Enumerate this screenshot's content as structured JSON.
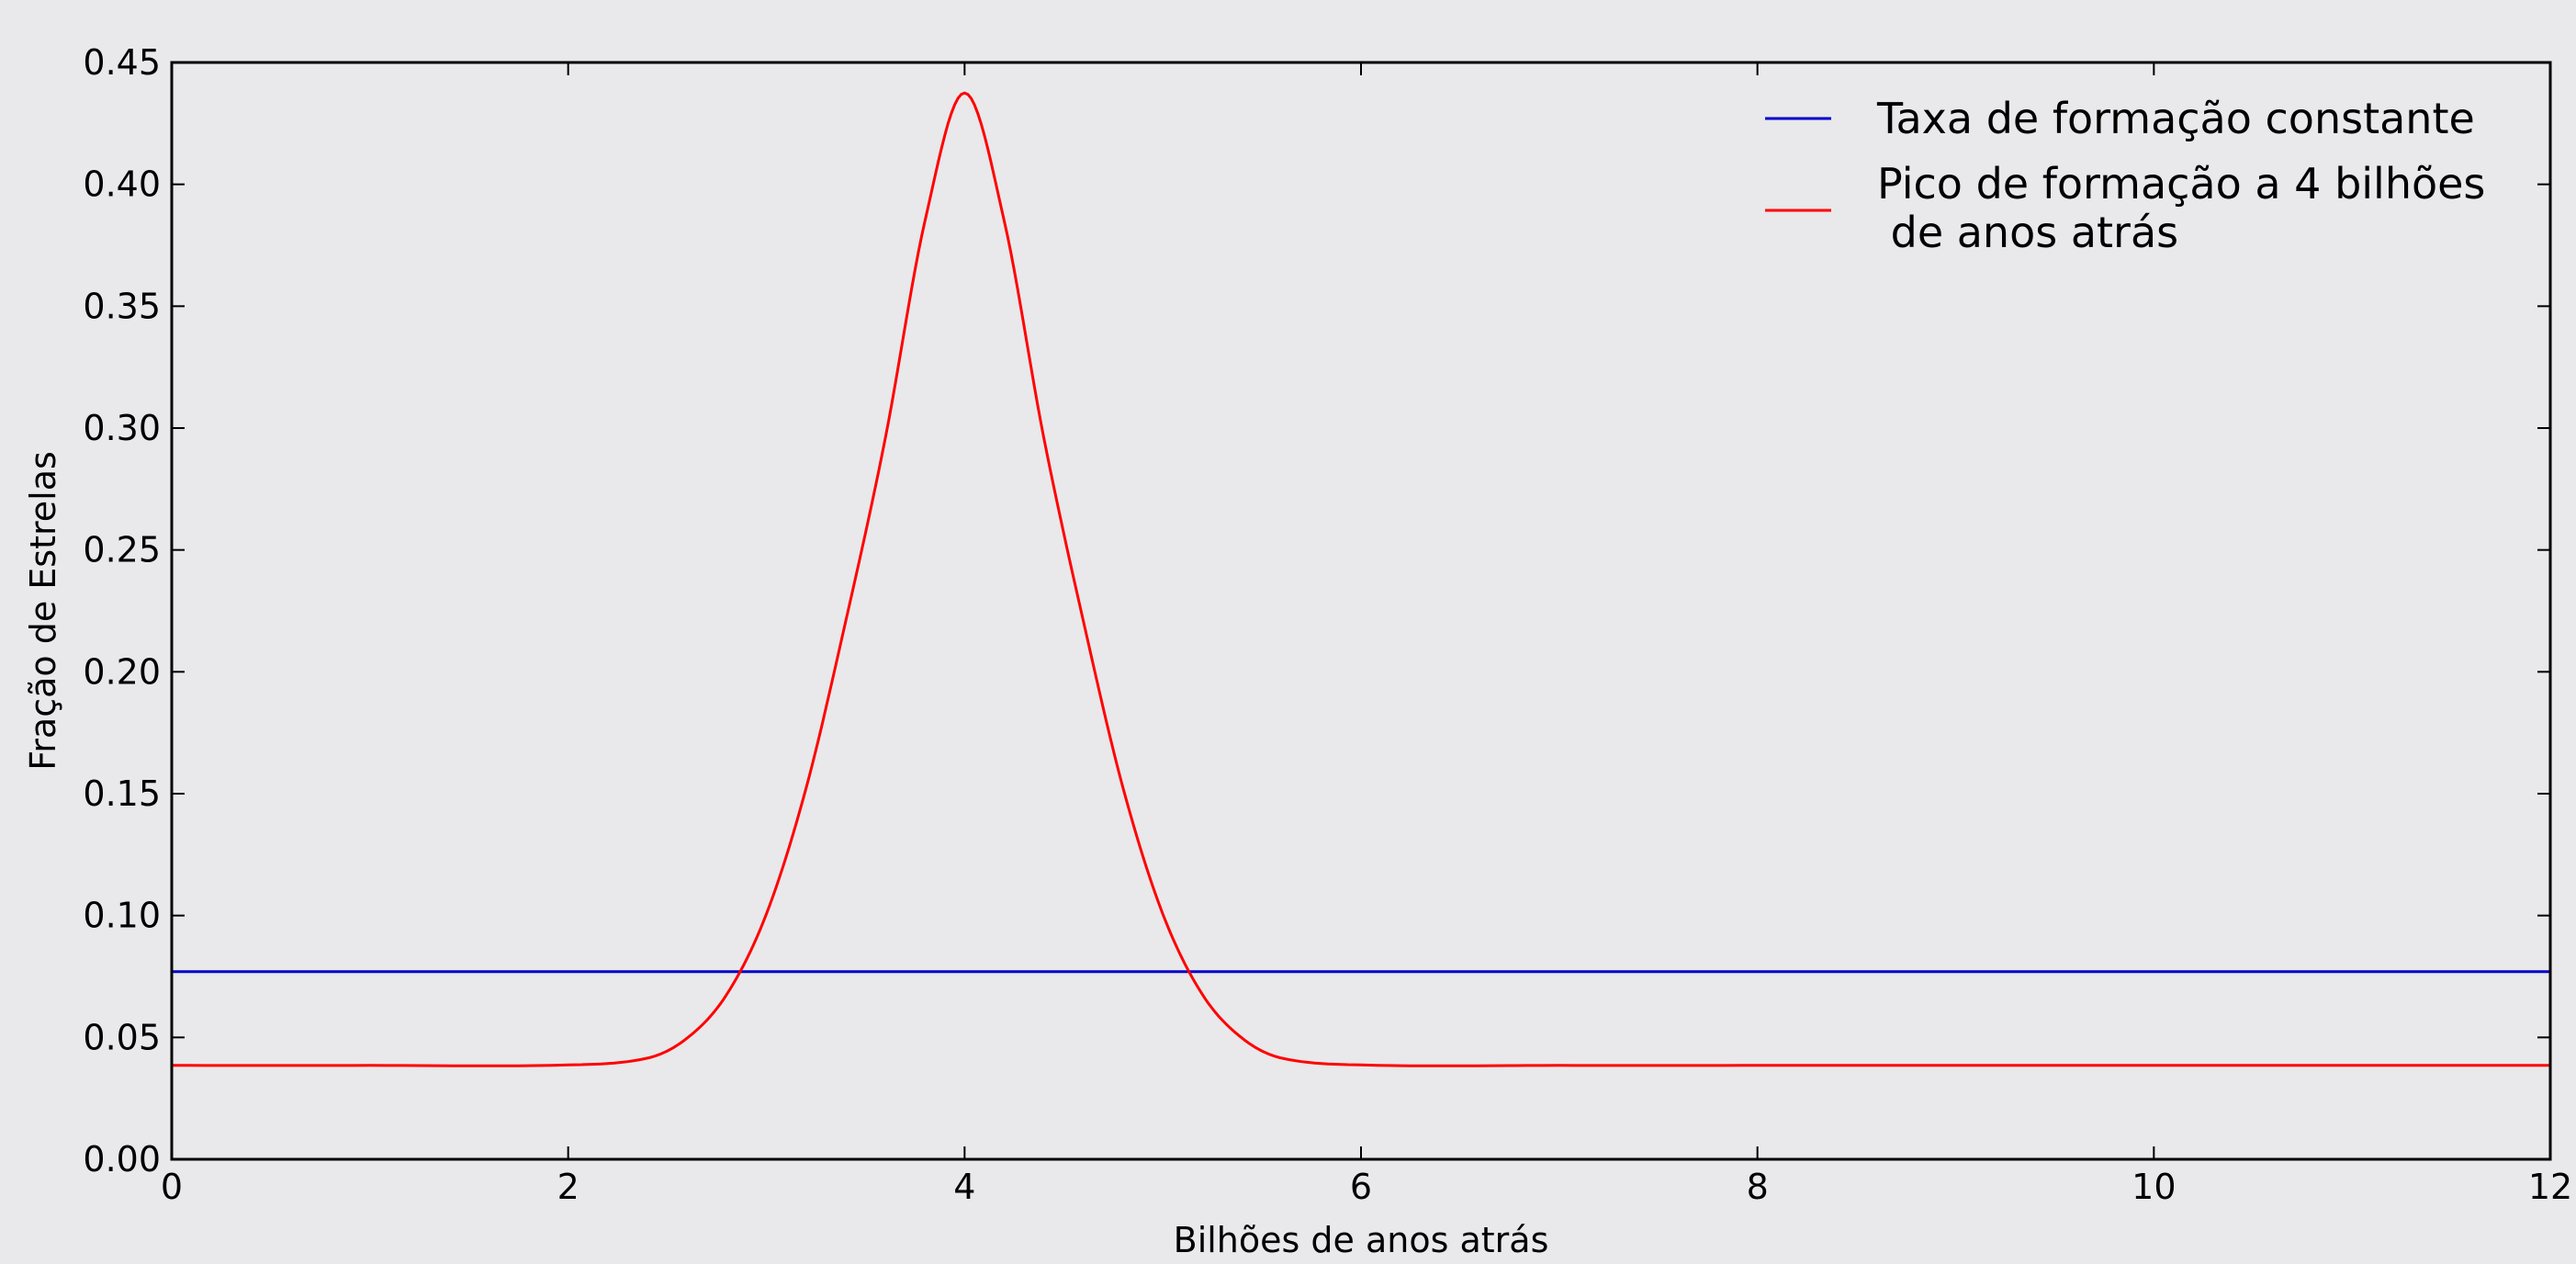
{
  "chart_data": {
    "type": "line",
    "title": "",
    "xlabel": "Bilhões de anos atrás",
    "ylabel": "Fração de Estrelas",
    "xlim": [
      0,
      12
    ],
    "ylim": [
      0,
      0.45
    ],
    "xticks": [
      0,
      2,
      4,
      6,
      8,
      10,
      12
    ],
    "xtick_labels": [
      "0",
      "2",
      "4",
      "6",
      "8",
      "10",
      "12"
    ],
    "yticks": [
      0.0,
      0.05,
      0.1,
      0.15,
      0.2,
      0.25,
      0.3,
      0.35,
      0.4,
      0.45
    ],
    "ytick_labels": [
      "0.00",
      "0.05",
      "0.10",
      "0.15",
      "0.20",
      "0.25",
      "0.30",
      "0.35",
      "0.40",
      "0.45"
    ],
    "grid": false,
    "legend_position": "top-right",
    "series": [
      {
        "name": "Taxa de formação constante",
        "color": "#0000cc",
        "x": [
          0,
          2,
          4,
          6,
          8,
          10,
          12
        ],
        "y": [
          0.077,
          0.077,
          0.077,
          0.077,
          0.077,
          0.077,
          0.077
        ]
      },
      {
        "name": "Pico de formação a 4 bilhões\n de anos atrás",
        "name_lines": [
          "Pico de formação a 4 bilhões",
          " de anos atrás"
        ],
        "color": "#ff0000",
        "x": [
          0,
          1,
          2,
          2.4,
          2.6,
          2.8,
          3.0,
          3.2,
          3.4,
          3.6,
          3.8,
          4.0,
          4.2,
          4.4,
          4.6,
          4.8,
          5.0,
          5.2,
          5.4,
          5.6,
          6.0,
          7,
          8,
          9,
          10,
          11,
          12
        ],
        "y": [
          0.0385,
          0.0385,
          0.0387,
          0.0415,
          0.0497,
          0.0676,
          0.1006,
          0.1522,
          0.2206,
          0.2958,
          0.385,
          0.4375,
          0.385,
          0.2958,
          0.2206,
          0.1522,
          0.1006,
          0.0676,
          0.0497,
          0.0415,
          0.0387,
          0.0385,
          0.0385,
          0.0385,
          0.0385,
          0.0385,
          0.0385
        ]
      }
    ]
  }
}
